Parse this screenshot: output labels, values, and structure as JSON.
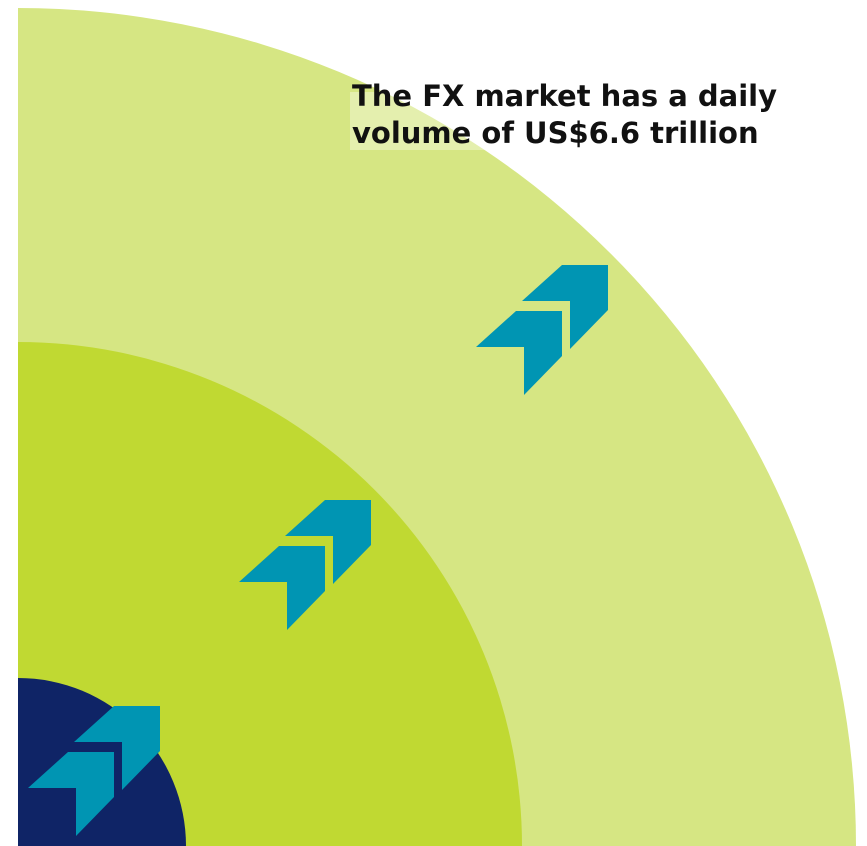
{
  "headline": {
    "lines": [
      "The FX market has a daily",
      "volume of US$6.6 trillion"
    ]
  }
}
